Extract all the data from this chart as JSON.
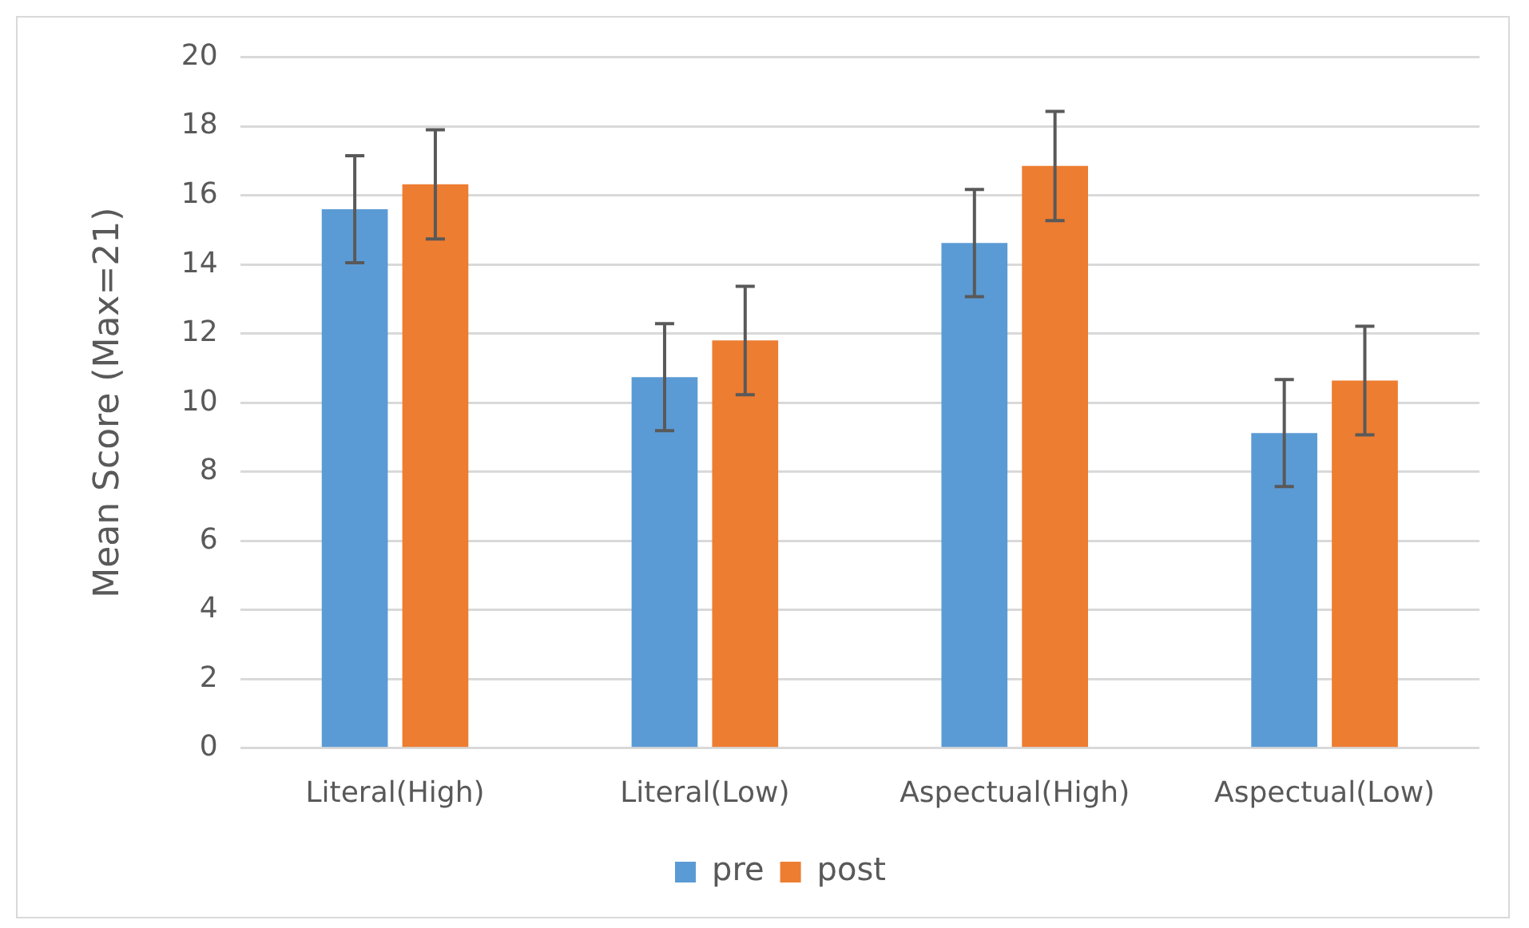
{
  "chart_data": {
    "type": "bar",
    "ylabel": "Mean Score (Max=21)",
    "categories": [
      "Literal(High)",
      "Literal(Low)",
      "Aspectual(High)",
      "Aspectual(Low)"
    ],
    "series": [
      {
        "name": "pre",
        "color": "#5b9bd5",
        "values": [
          15.6,
          10.74,
          14.62,
          9.12
        ],
        "errors": [
          1.55,
          1.55,
          1.55,
          1.55
        ]
      },
      {
        "name": "post",
        "color": "#ed7d31",
        "values": [
          16.32,
          11.8,
          16.85,
          10.64
        ],
        "errors": [
          1.58,
          1.57,
          1.58,
          1.57
        ]
      }
    ],
    "ylim": [
      0,
      20
    ],
    "yticks": [
      0,
      2,
      4,
      6,
      8,
      10,
      12,
      14,
      16,
      18,
      20
    ],
    "grid": "y",
    "legend": "bottom"
  }
}
